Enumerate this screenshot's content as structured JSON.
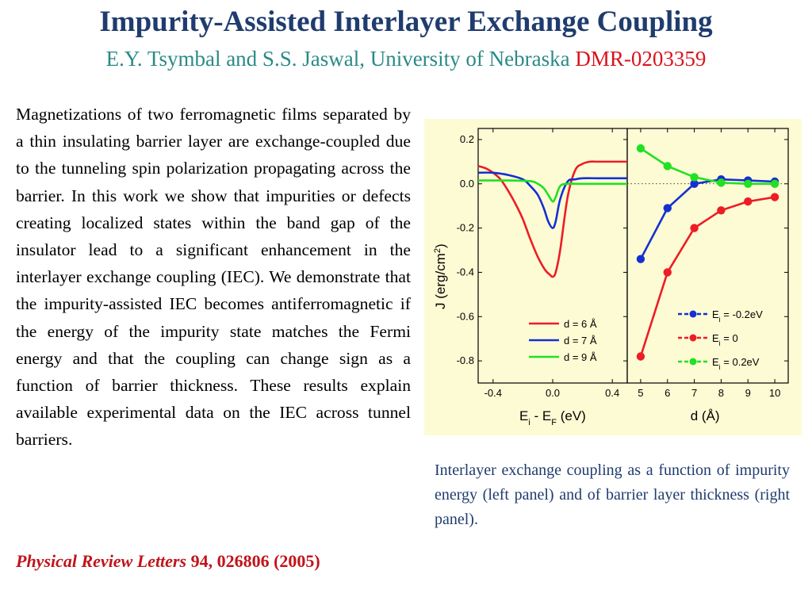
{
  "slide": {
    "title": "Impurity-Assisted Interlayer Exchange Coupling",
    "authors": "E.Y. Tsymbal and S.S. Jaswal, University of Nebraska",
    "grant": "DMR-0203359",
    "abstract": "Magnetizations of two ferromagnetic films separated by a thin insulating barrier layer are exchange-coupled due to the tunneling spin polarization propagating across the barrier. In this work  we show that impurities or defects creating localized states within the band gap of the insulator lead to a significant enhancement in the interlayer exchange coupling (IEC). We demonstrate that the impurity-assisted IEC becomes antiferromagnetic if the energy of the impurity state matches the Fermi energy and that the coupling can change sign as a function of barrier thickness. These results explain available experimental data on the IEC across tunnel barriers.",
    "citation_journal": "Physical Review Letters",
    "citation_rest": " 94, 026806 (2005)",
    "caption": "Interlayer exchange coupling as a function of impurity energy (left panel) and of barrier layer thickness (right panel)."
  },
  "colors": {
    "title": "#1f3c6e",
    "authors": "#2a8a86",
    "grant": "#d8141d",
    "citation": "#c0141a",
    "panel_bg": "#fdfbd4",
    "red": "#ee1c25",
    "blue": "#1530d0",
    "green": "#22e022"
  },
  "chart_data": [
    {
      "type": "line",
      "panel": "left",
      "xlabel_main": "E",
      "xlabel_sub1": "i",
      "xlabel_mid": " - E",
      "xlabel_sub2": "F",
      "xlabel_tail": " (eV)",
      "ylabel": "J (erg/cm",
      "ylabel_sup": "2",
      "ylabel_tail": ")",
      "xlim": [
        -0.5,
        0.5
      ],
      "ylim": [
        -0.9,
        0.25
      ],
      "xticks": [
        -0.4,
        0.0,
        0.4
      ],
      "xtick_labels": [
        "-0.4",
        "0.0",
        "0.4"
      ],
      "yticks": [
        0.2,
        0.0,
        -0.2,
        -0.4,
        -0.6,
        -0.8
      ],
      "ytick_labels": [
        "0.2",
        "0.0",
        "-0.2",
        "-0.4",
        "-0.6",
        "-0.8"
      ],
      "legend_position": "bottom-right",
      "series": [
        {
          "name": "d = 6 Å",
          "color": "#ee1c25",
          "x": [
            -0.5,
            -0.45,
            -0.4,
            -0.35,
            -0.3,
            -0.25,
            -0.2,
            -0.15,
            -0.1,
            -0.05,
            -0.02,
            0.0,
            0.02,
            0.05,
            0.1,
            0.15,
            0.2,
            0.25,
            0.3,
            0.4,
            0.5
          ],
          "y": [
            0.08,
            0.07,
            0.05,
            0.02,
            -0.03,
            -0.09,
            -0.16,
            -0.25,
            -0.33,
            -0.39,
            -0.41,
            -0.42,
            -0.4,
            -0.3,
            -0.06,
            0.06,
            0.09,
            0.1,
            0.1,
            0.1,
            0.1
          ]
        },
        {
          "name": "d = 7 Å",
          "color": "#1530d0",
          "x": [
            -0.5,
            -0.4,
            -0.3,
            -0.2,
            -0.15,
            -0.1,
            -0.06,
            -0.03,
            0.0,
            0.02,
            0.05,
            0.1,
            0.15,
            0.2,
            0.3,
            0.4,
            0.5
          ],
          "y": [
            0.05,
            0.05,
            0.04,
            0.02,
            -0.01,
            -0.05,
            -0.11,
            -0.17,
            -0.2,
            -0.17,
            -0.07,
            0.01,
            0.02,
            0.025,
            0.025,
            0.025,
            0.025
          ]
        },
        {
          "name": "d = 9 Å",
          "color": "#22e022",
          "x": [
            -0.5,
            -0.3,
            -0.15,
            -0.1,
            -0.06,
            -0.03,
            0.0,
            0.02,
            0.05,
            0.1,
            0.2,
            0.5
          ],
          "y": [
            0.015,
            0.015,
            0.012,
            0.0,
            -0.02,
            -0.05,
            -0.08,
            -0.06,
            -0.01,
            0.0,
            0.0,
            0.0
          ]
        }
      ]
    },
    {
      "type": "line",
      "panel": "right",
      "xlabel": "d (Å)",
      "xlim": [
        4.5,
        10.5
      ],
      "ylim": [
        -0.9,
        0.25
      ],
      "xticks": [
        5,
        6,
        7,
        8,
        9,
        10
      ],
      "xtick_labels": [
        "5",
        "6",
        "7",
        "8",
        "9",
        "10"
      ],
      "legend_position": "bottom-right",
      "series": [
        {
          "name_main": "E",
          "name_sub": "i",
          "name_tail": " = -0.2eV",
          "color": "#1530d0",
          "x": [
            5,
            6,
            7,
            8,
            9,
            10
          ],
          "y": [
            -0.34,
            -0.11,
            0.0,
            0.02,
            0.015,
            0.01
          ]
        },
        {
          "name_main": "E",
          "name_sub": "i",
          "name_tail": " = 0",
          "color": "#ee1c25",
          "x": [
            5,
            6,
            7,
            8,
            9,
            10
          ],
          "y": [
            -0.78,
            -0.4,
            -0.2,
            -0.12,
            -0.08,
            -0.06
          ]
        },
        {
          "name_main": "E",
          "name_sub": "i",
          "name_tail": " = 0.2eV",
          "color": "#22e022",
          "x": [
            5,
            6,
            7,
            8,
            9,
            10
          ],
          "y": [
            0.16,
            0.08,
            0.03,
            0.005,
            0.0,
            0.0
          ]
        }
      ]
    }
  ]
}
